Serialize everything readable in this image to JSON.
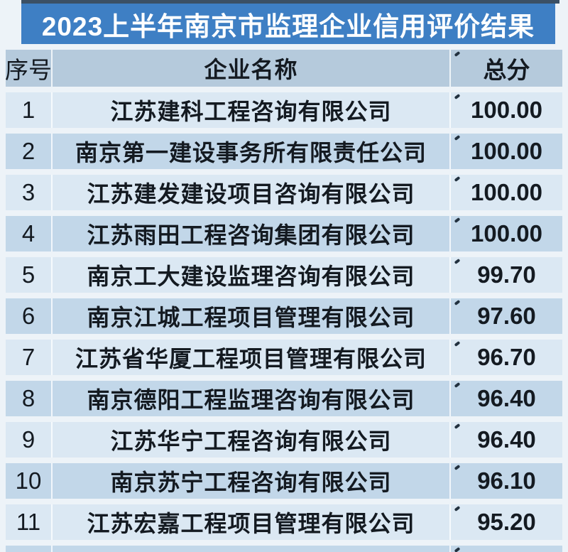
{
  "title": "2023上半年南京市监理企业信用评价结果",
  "table": {
    "headers": {
      "no": "序号",
      "name": "企业名称",
      "score": "总分"
    },
    "rows": [
      {
        "no": "1",
        "name": "江苏建科工程咨询有限公司",
        "score": "100.00"
      },
      {
        "no": "2",
        "name": "南京第一建设事务所有限责任公司",
        "score": "100.00"
      },
      {
        "no": "3",
        "name": "江苏建发建设项目咨询有限公司",
        "score": "100.00"
      },
      {
        "no": "4",
        "name": "江苏雨田工程咨询集团有限公司",
        "score": "100.00"
      },
      {
        "no": "5",
        "name": "南京工大建设监理咨询有限公司",
        "score": "99.70"
      },
      {
        "no": "6",
        "name": "南京江城工程项目管理有限公司",
        "score": "97.60"
      },
      {
        "no": "7",
        "name": "江苏省华厦工程项目管理有限公司",
        "score": "96.70"
      },
      {
        "no": "8",
        "name": "南京德阳工程监理咨询有限公司",
        "score": "96.40"
      },
      {
        "no": "9",
        "name": "江苏华宁工程咨询有限公司",
        "score": "96.40"
      },
      {
        "no": "10",
        "name": "南京苏宁工程咨询有限公司",
        "score": "96.10"
      },
      {
        "no": "11",
        "name": "江苏宏嘉工程项目管理有限公司",
        "score": "95.20"
      }
    ]
  },
  "colors": {
    "page_bg": "#edf3f8",
    "top_strip": "#3b5065",
    "title_bar": "#3e7fc4",
    "title_text": "#ffffff",
    "header_bg": "#b5cadc",
    "row_light": "#dbe8f3",
    "row_dark": "#c2d7e9",
    "text_dark": "#141a21"
  }
}
